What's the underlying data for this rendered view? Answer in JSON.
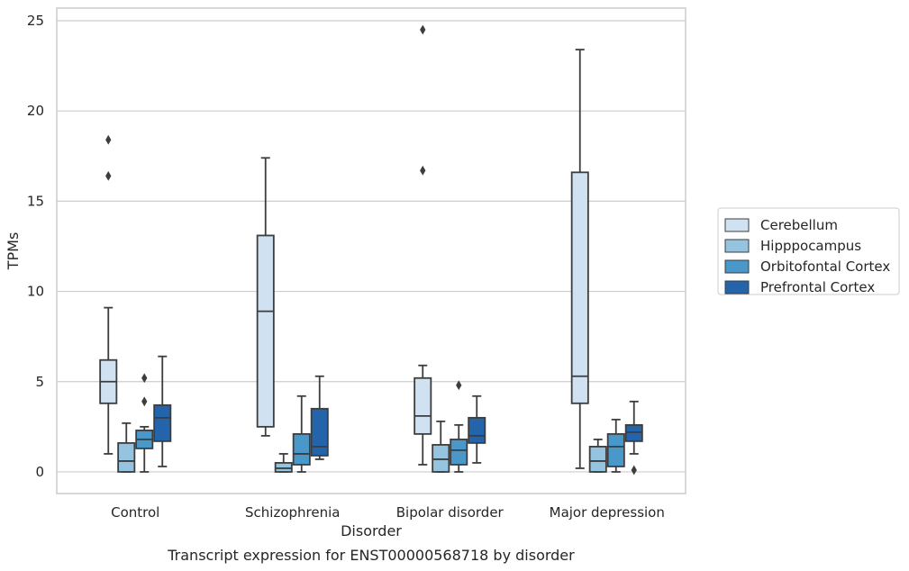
{
  "chart_data": {
    "type": "box",
    "xlabel": "Disorder",
    "ylabel": "TPMs",
    "caption": "Transcript expression for ENST00000568718 by disorder",
    "categories": [
      "Control",
      "Schizophrenia",
      "Bipolar disorder",
      "Major depression"
    ],
    "yticks": [
      0,
      5,
      10,
      15,
      20,
      25
    ],
    "ylim": [
      -1.2,
      25.7
    ],
    "grid": "horizontal",
    "legend_position": "right",
    "series": [
      {
        "name": "Cerebellum",
        "color": "#d0e1f2",
        "boxes": [
          {
            "whislo": 1.0,
            "q1": 3.8,
            "med": 5.0,
            "q3": 6.2,
            "whishi": 9.1,
            "fliers": [
              16.4,
              18.4
            ]
          },
          {
            "whislo": 2.0,
            "q1": 2.5,
            "med": 8.9,
            "q3": 13.1,
            "whishi": 17.4,
            "fliers": []
          },
          {
            "whislo": 0.4,
            "q1": 2.1,
            "med": 3.1,
            "q3": 5.2,
            "whishi": 5.9,
            "fliers": [
              16.7,
              24.5
            ]
          },
          {
            "whislo": 0.2,
            "q1": 3.8,
            "med": 5.3,
            "q3": 16.6,
            "whishi": 23.4,
            "fliers": []
          }
        ]
      },
      {
        "name": "Hipppocampus",
        "color": "#94c4df",
        "boxes": [
          {
            "whislo": 0.0,
            "q1": 0.0,
            "med": 0.6,
            "q3": 1.6,
            "whishi": 2.7,
            "fliers": []
          },
          {
            "whislo": 0.0,
            "q1": 0.0,
            "med": 0.2,
            "q3": 0.5,
            "whishi": 1.0,
            "fliers": []
          },
          {
            "whislo": 0.0,
            "q1": 0.0,
            "med": 0.7,
            "q3": 1.5,
            "whishi": 2.8,
            "fliers": []
          },
          {
            "whislo": 0.0,
            "q1": 0.0,
            "med": 0.6,
            "q3": 1.4,
            "whishi": 1.8,
            "fliers": []
          }
        ]
      },
      {
        "name": "Orbitofontal Cortex",
        "color": "#4a98c9",
        "boxes": [
          {
            "whislo": 0.0,
            "q1": 1.3,
            "med": 1.8,
            "q3": 2.3,
            "whishi": 2.5,
            "fliers": [
              3.9,
              5.2
            ]
          },
          {
            "whislo": 0.0,
            "q1": 0.4,
            "med": 1.0,
            "q3": 2.1,
            "whishi": 4.2,
            "fliers": []
          },
          {
            "whislo": 0.0,
            "q1": 0.4,
            "med": 1.2,
            "q3": 1.8,
            "whishi": 2.6,
            "fliers": [
              4.8
            ]
          },
          {
            "whislo": 0.0,
            "q1": 0.3,
            "med": 1.4,
            "q3": 2.1,
            "whishi": 2.9,
            "fliers": []
          }
        ]
      },
      {
        "name": "Prefrontal Cortex",
        "color": "#2464ab",
        "boxes": [
          {
            "whislo": 0.3,
            "q1": 1.7,
            "med": 3.0,
            "q3": 3.7,
            "whishi": 6.4,
            "fliers": []
          },
          {
            "whislo": 0.7,
            "q1": 0.9,
            "med": 1.4,
            "q3": 3.5,
            "whishi": 5.3,
            "fliers": []
          },
          {
            "whislo": 0.5,
            "q1": 1.6,
            "med": 2.0,
            "q3": 3.0,
            "whishi": 4.2,
            "fliers": []
          },
          {
            "whislo": 1.0,
            "q1": 1.7,
            "med": 2.2,
            "q3": 2.6,
            "whishi": 3.9,
            "fliers": [
              0.1
            ]
          }
        ]
      }
    ]
  }
}
